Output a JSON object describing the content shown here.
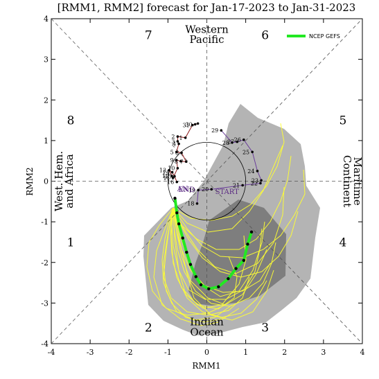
{
  "chart_data": {
    "type": "scatter",
    "title": "[RMM1, RMM2] forecast for Jan-17-2023 to Jan-31-2023",
    "xlabel": "RMM1",
    "ylabel": "RMM2",
    "xlim": [
      -4,
      4
    ],
    "ylim": [
      -4,
      4
    ],
    "x_ticks": [
      "-4",
      "-3",
      "-2",
      "-1",
      "0",
      "1",
      "2",
      "3",
      "4"
    ],
    "y_ticks": [
      "-4",
      "-3",
      "-2",
      "-1",
      "0",
      "1",
      "2",
      "3",
      "4"
    ],
    "phase_labels": [
      {
        "text": "1",
        "x": -3.5,
        "y": -1.5
      },
      {
        "text": "2",
        "x": -1.5,
        "y": -3.6
      },
      {
        "text": "3",
        "x": 1.5,
        "y": -3.6
      },
      {
        "text": "4",
        "x": 3.5,
        "y": -1.5
      },
      {
        "text": "5",
        "x": 3.5,
        "y": 1.5
      },
      {
        "text": "6",
        "x": 1.5,
        "y": 3.6
      },
      {
        "text": "7",
        "x": -1.5,
        "y": 3.6
      },
      {
        "text": "8",
        "x": -3.5,
        "y": 1.5
      }
    ],
    "regions": [
      {
        "line1": "Western",
        "line2": "Pacific",
        "position": "top"
      },
      {
        "line1": "Indian",
        "line2": "Ocean",
        "position": "bottom"
      },
      {
        "line1": "West. Hem.",
        "line2": "and Africa",
        "position": "left"
      },
      {
        "line1": "Maritime",
        "line2": "Continent",
        "position": "right"
      }
    ],
    "legend": {
      "entries": [
        "NCEP GEFS"
      ],
      "position": "top-right"
    },
    "series": [
      {
        "name": "observed-1",
        "color": "#8b1a1a",
        "points": [
          {
            "label": "",
            "x": -0.23,
            "y": 1.42
          },
          {
            "label": "30",
            "x": -0.3,
            "y": 1.4
          },
          {
            "label": "31",
            "x": -0.37,
            "y": 1.38
          },
          {
            "label": "1",
            "x": -0.55,
            "y": 1.07
          },
          {
            "label": "2",
            "x": -0.75,
            "y": 1.1
          },
          {
            "label": "3",
            "x": -0.75,
            "y": 0.98
          },
          {
            "label": "4",
            "x": -0.72,
            "y": 0.92
          },
          {
            "label": "5",
            "x": -0.78,
            "y": 0.72
          },
          {
            "label": "6",
            "x": -0.65,
            "y": 0.7
          },
          {
            "label": "7",
            "x": -0.53,
            "y": 0.48
          },
          {
            "label": "8",
            "x": -0.67,
            "y": 0.49
          },
          {
            "label": "9",
            "x": -0.78,
            "y": 0.52
          },
          {
            "label": "10",
            "x": -0.75,
            "y": 0.32
          },
          {
            "label": "11",
            "x": -0.87,
            "y": 0.08
          },
          {
            "label": "12",
            "x": -0.9,
            "y": 0.13
          },
          {
            "label": "13",
            "x": -0.97,
            "y": 0.27
          },
          {
            "label": "14",
            "x": -0.89,
            "y": 0.22
          },
          {
            "label": "15",
            "x": -0.83,
            "y": 0.12
          },
          {
            "label": "16",
            "x": -0.77,
            "y": -0.02
          }
        ]
      },
      {
        "name": "observed-2",
        "color": "#6a3d9a",
        "points": [
          {
            "label": "18",
            "x": -0.25,
            "y": -0.55
          },
          {
            "label": "19",
            "x": -0.22,
            "y": -0.22
          },
          {
            "label": "20",
            "x": 0.12,
            "y": -0.2
          },
          {
            "label": "21",
            "x": 0.92,
            "y": -0.1
          },
          {
            "label": "22",
            "x": 1.38,
            "y": -0.05
          },
          {
            "label": "23",
            "x": 1.4,
            "y": 0.02
          },
          {
            "label": "24",
            "x": 1.3,
            "y": 0.25
          },
          {
            "label": "25",
            "x": 1.17,
            "y": 0.72
          },
          {
            "label": "26",
            "x": 0.95,
            "y": 1.02
          },
          {
            "label": "27",
            "x": 0.78,
            "y": 0.97
          },
          {
            "label": "28",
            "x": 0.65,
            "y": 0.95
          },
          {
            "label": "29",
            "x": 0.37,
            "y": 1.25
          }
        ]
      },
      {
        "name": "NCEP GEFS",
        "color": "#22e822",
        "points": [
          {
            "label": "",
            "x": -0.82,
            "y": -0.42
          },
          {
            "label": "",
            "x": -0.77,
            "y": -0.78
          },
          {
            "label": "",
            "x": -0.72,
            "y": -1.05
          },
          {
            "label": "",
            "x": -0.62,
            "y": -1.4
          },
          {
            "label": "",
            "x": -0.52,
            "y": -1.75
          },
          {
            "label": "",
            "x": -0.42,
            "y": -2.05
          },
          {
            "label": "",
            "x": -0.28,
            "y": -2.35
          },
          {
            "label": "",
            "x": -0.15,
            "y": -2.55
          },
          {
            "label": "",
            "x": 0.05,
            "y": -2.65
          },
          {
            "label": "",
            "x": 0.3,
            "y": -2.6
          },
          {
            "label": "",
            "x": 0.55,
            "y": -2.4
          },
          {
            "label": "",
            "x": 0.75,
            "y": -2.15
          },
          {
            "label": "",
            "x": 0.95,
            "y": -1.95
          },
          {
            "label": "",
            "x": 1.05,
            "y": -1.55
          },
          {
            "label": "",
            "x": 1.15,
            "y": -1.25
          }
        ]
      }
    ],
    "path_labels": [
      {
        "text": "START",
        "x": 0.52,
        "y": -0.25
      },
      {
        "text": "END",
        "x": -0.52,
        "y": -0.2
      },
      {
        "text": "AN",
        "x": -0.62,
        "y": -0.18
      }
    ]
  }
}
